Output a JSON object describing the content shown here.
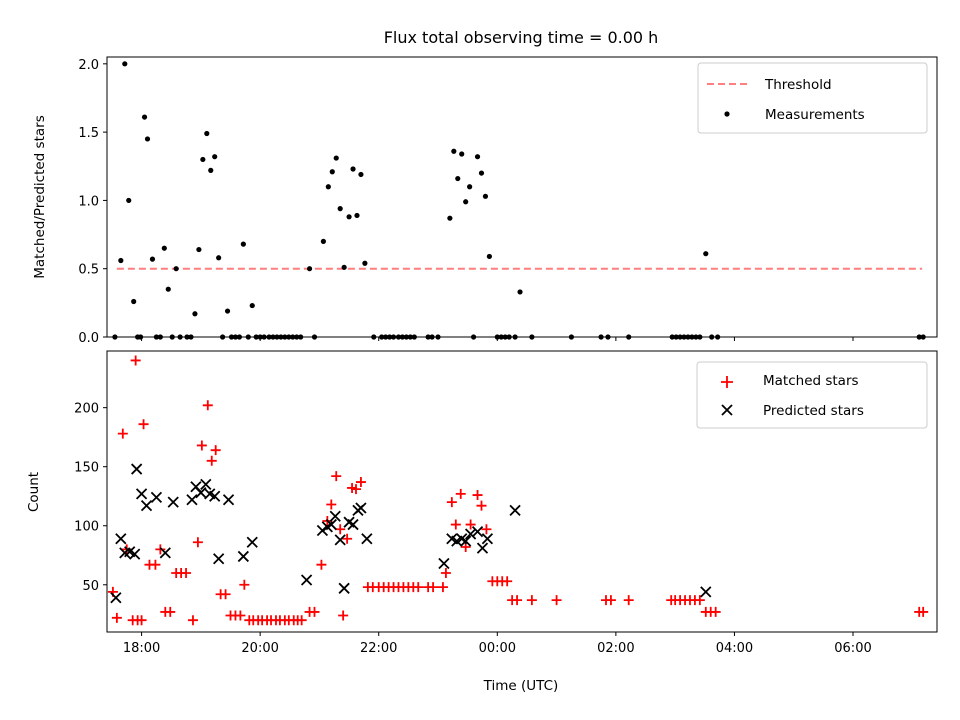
{
  "chart_data": [
    {
      "type": "scatter",
      "title": "Flux total observing time = 0.00 h",
      "xlabel": "",
      "ylabel": "Matched/Predicted stars",
      "xlim": [
        "17:25",
        "07:25"
      ],
      "ylim": [
        0,
        2.05
      ],
      "yticks": [
        "0.0",
        "0.5",
        "1.0",
        "1.5",
        "2.0"
      ],
      "legend_position": "top-right",
      "legend": [
        {
          "label": "Threshold",
          "marker": "dashed-line",
          "color": "#ff7f7f"
        },
        {
          "label": "Measurements",
          "marker": "dot",
          "color": "#000000"
        }
      ],
      "threshold": {
        "value": 0.5,
        "x_start": "17:35",
        "x_end": "07:10"
      },
      "series": [
        {
          "name": "Measurements",
          "color": "#000000",
          "points": [
            [
              "17:33",
              0
            ],
            [
              "17:39",
              0.56
            ],
            [
              "17:43",
              2.0
            ],
            [
              "17:47",
              1.0
            ],
            [
              "17:52",
              0.26
            ],
            [
              "17:56",
              0
            ],
            [
              "17:59",
              0
            ],
            [
              "18:03",
              1.61
            ],
            [
              "18:06",
              1.45
            ],
            [
              "18:11",
              0.57
            ],
            [
              "18:15",
              0
            ],
            [
              "18:19",
              0
            ],
            [
              "18:23",
              0.65
            ],
            [
              "18:27",
              0.35
            ],
            [
              "18:31",
              0
            ],
            [
              "18:35",
              0.5
            ],
            [
              "18:39",
              0
            ],
            [
              "18:46",
              0
            ],
            [
              "18:50",
              0
            ],
            [
              "18:54",
              0.17
            ],
            [
              "18:58",
              0.64
            ],
            [
              "19:02",
              1.3
            ],
            [
              "19:06",
              1.49
            ],
            [
              "19:10",
              1.22
            ],
            [
              "19:14",
              1.32
            ],
            [
              "19:18",
              0.58
            ],
            [
              "19:22",
              0
            ],
            [
              "19:27",
              0.19
            ],
            [
              "19:31",
              0
            ],
            [
              "19:35",
              0
            ],
            [
              "19:39",
              0
            ],
            [
              "19:43",
              0.68
            ],
            [
              "19:48",
              0
            ],
            [
              "19:52",
              0.23
            ],
            [
              "19:56",
              0
            ],
            [
              "20:00",
              0
            ],
            [
              "20:04",
              0
            ],
            [
              "20:09",
              0
            ],
            [
              "20:13",
              0
            ],
            [
              "20:17",
              0
            ],
            [
              "20:21",
              0
            ],
            [
              "20:25",
              0
            ],
            [
              "20:29",
              0
            ],
            [
              "20:33",
              0
            ],
            [
              "20:37",
              0
            ],
            [
              "20:41",
              0
            ],
            [
              "20:50",
              0.5
            ],
            [
              "20:55",
              0
            ],
            [
              "21:04",
              0.7
            ],
            [
              "21:09",
              1.1
            ],
            [
              "21:13",
              1.21
            ],
            [
              "21:17",
              1.31
            ],
            [
              "21:21",
              0.94
            ],
            [
              "21:25",
              0.51
            ],
            [
              "21:30",
              0.88
            ],
            [
              "21:34",
              1.23
            ],
            [
              "21:38",
              0.89
            ],
            [
              "21:42",
              1.19
            ],
            [
              "21:46",
              0.54
            ],
            [
              "21:55",
              0
            ],
            [
              "22:03",
              0
            ],
            [
              "22:07",
              0
            ],
            [
              "22:11",
              0
            ],
            [
              "22:15",
              0
            ],
            [
              "22:20",
              0
            ],
            [
              "22:24",
              0
            ],
            [
              "22:28",
              0
            ],
            [
              "22:32",
              0
            ],
            [
              "22:36",
              0
            ],
            [
              "22:50",
              0
            ],
            [
              "22:54",
              0
            ],
            [
              "23:00",
              0
            ],
            [
              "23:12",
              0.87
            ],
            [
              "23:16",
              1.36
            ],
            [
              "23:20",
              1.16
            ],
            [
              "23:24",
              1.34
            ],
            [
              "23:28",
              0.99
            ],
            [
              "23:32",
              1.1
            ],
            [
              "23:36",
              0
            ],
            [
              "23:40",
              1.32
            ],
            [
              "23:44",
              1.2
            ],
            [
              "23:48",
              1.03
            ],
            [
              "23:52",
              0.59
            ],
            [
              "24:00",
              0
            ],
            [
              "24:04",
              0
            ],
            [
              "24:08",
              0
            ],
            [
              "24:12",
              0
            ],
            [
              "24:18",
              0
            ],
            [
              "24:23",
              0.33
            ],
            [
              "24:35",
              0
            ],
            [
              "25:15",
              0
            ],
            [
              "25:45",
              0
            ],
            [
              "25:52",
              0
            ],
            [
              "26:13",
              0
            ],
            [
              "26:57",
              0
            ],
            [
              "27:01",
              0
            ],
            [
              "27:05",
              0
            ],
            [
              "27:09",
              0
            ],
            [
              "27:13",
              0
            ],
            [
              "27:17",
              0
            ],
            [
              "27:21",
              0
            ],
            [
              "27:25",
              0
            ],
            [
              "27:31",
              0.61
            ],
            [
              "27:37",
              0
            ],
            [
              "27:43",
              0
            ],
            [
              "31:07",
              0
            ],
            [
              "31:11",
              0
            ]
          ]
        }
      ]
    },
    {
      "type": "scatter",
      "title": "",
      "xlabel": "Time (UTC)",
      "ylabel": "Count",
      "xlim": [
        "17:25",
        "07:25"
      ],
      "ylim": [
        10,
        248
      ],
      "xticks": [
        "18:00",
        "20:00",
        "22:00",
        "00:00",
        "02:00",
        "04:00",
        "06:00"
      ],
      "yticks": [
        "50",
        "100",
        "150",
        "200"
      ],
      "legend_position": "top-right",
      "legend": [
        {
          "label": "Matched stars",
          "marker": "plus",
          "color": "#ff0000"
        },
        {
          "label": "Predicted stars",
          "marker": "x",
          "color": "#000000"
        }
      ],
      "series": [
        {
          "name": "Matched stars",
          "color": "#ff0000",
          "points": [
            [
              "17:31",
              44
            ],
            [
              "17:35",
              22
            ],
            [
              "17:41",
              178
            ],
            [
              "17:45",
              80
            ],
            [
              "17:51",
              20
            ],
            [
              "17:56",
              20
            ],
            [
              "18:00",
              20
            ],
            [
              "17:54",
              240
            ],
            [
              "18:02",
              186
            ],
            [
              "18:08",
              67
            ],
            [
              "18:14",
              67
            ],
            [
              "18:19",
              80
            ],
            [
              "18:24",
              27
            ],
            [
              "18:29",
              27
            ],
            [
              "18:35",
              60
            ],
            [
              "18:40",
              60
            ],
            [
              "18:45",
              60
            ],
            [
              "18:52",
              20
            ],
            [
              "18:57",
              86
            ],
            [
              "19:01",
              168
            ],
            [
              "19:07",
              202
            ],
            [
              "19:11",
              155
            ],
            [
              "19:15",
              164
            ],
            [
              "19:20",
              42
            ],
            [
              "19:25",
              42
            ],
            [
              "19:30",
              24
            ],
            [
              "19:35",
              24
            ],
            [
              "19:40",
              24
            ],
            [
              "19:44",
              50
            ],
            [
              "19:49",
              20
            ],
            [
              "19:53",
              20
            ],
            [
              "19:58",
              20
            ],
            [
              "20:02",
              20
            ],
            [
              "20:07",
              20
            ],
            [
              "20:11",
              20
            ],
            [
              "20:16",
              20
            ],
            [
              "20:20",
              20
            ],
            [
              "20:25",
              20
            ],
            [
              "20:29",
              20
            ],
            [
              "20:34",
              20
            ],
            [
              "20:38",
              20
            ],
            [
              "20:42",
              20
            ],
            [
              "20:50",
              27
            ],
            [
              "20:55",
              27
            ],
            [
              "21:02",
              67
            ],
            [
              "21:08",
              104
            ],
            [
              "21:12",
              118
            ],
            [
              "21:17",
              142
            ],
            [
              "21:21",
              97
            ],
            [
              "21:24",
              24
            ],
            [
              "21:28",
              89
            ],
            [
              "21:33",
              132
            ],
            [
              "21:37",
              131
            ],
            [
              "21:42",
              137
            ],
            [
              "21:49",
              48
            ],
            [
              "21:54",
              48
            ],
            [
              "22:00",
              48
            ],
            [
              "22:05",
              48
            ],
            [
              "22:10",
              48
            ],
            [
              "22:15",
              48
            ],
            [
              "22:20",
              48
            ],
            [
              "22:25",
              48
            ],
            [
              "22:30",
              48
            ],
            [
              "22:35",
              48
            ],
            [
              "22:40",
              48
            ],
            [
              "22:50",
              48
            ],
            [
              "22:55",
              48
            ],
            [
              "23:05",
              48
            ],
            [
              "23:08",
              60
            ],
            [
              "23:14",
              120
            ],
            [
              "23:18",
              101
            ],
            [
              "23:23",
              127
            ],
            [
              "23:28",
              82
            ],
            [
              "23:33",
              101
            ],
            [
              "23:40",
              126
            ],
            [
              "23:44",
              117
            ],
            [
              "23:49",
              97
            ],
            [
              "23:55",
              53
            ],
            [
              "24:00",
              53
            ],
            [
              "24:05",
              53
            ],
            [
              "24:10",
              53
            ],
            [
              "24:15",
              37
            ],
            [
              "24:20",
              37
            ],
            [
              "24:35",
              37
            ],
            [
              "25:00",
              37
            ],
            [
              "25:50",
              37
            ],
            [
              "25:55",
              37
            ],
            [
              "26:13",
              37
            ],
            [
              "26:56",
              37
            ],
            [
              "27:00",
              37
            ],
            [
              "27:05",
              37
            ],
            [
              "27:10",
              37
            ],
            [
              "27:15",
              37
            ],
            [
              "27:20",
              37
            ],
            [
              "27:25",
              37
            ],
            [
              "27:31",
              27
            ],
            [
              "27:36",
              27
            ],
            [
              "27:41",
              27
            ],
            [
              "31:07",
              27
            ],
            [
              "31:11",
              27
            ]
          ]
        },
        {
          "name": "Predicted stars",
          "color": "#000000",
          "points": [
            [
              "17:34",
              39
            ],
            [
              "17:39",
              89
            ],
            [
              "17:43",
              77
            ],
            [
              "17:48",
              78
            ],
            [
              "17:53",
              76
            ],
            [
              "17:55",
              148
            ],
            [
              "18:00",
              127
            ],
            [
              "18:05",
              117
            ],
            [
              "18:15",
              124
            ],
            [
              "18:24",
              77
            ],
            [
              "18:32",
              120
            ],
            [
              "18:51",
              122
            ],
            [
              "18:55",
              133
            ],
            [
              "19:00",
              128
            ],
            [
              "19:05",
              135
            ],
            [
              "19:09",
              127
            ],
            [
              "19:14",
              125
            ],
            [
              "19:18",
              72
            ],
            [
              "19:28",
              122
            ],
            [
              "19:43",
              74
            ],
            [
              "19:52",
              86
            ],
            [
              "20:47",
              54
            ],
            [
              "21:03",
              96
            ],
            [
              "21:08",
              99
            ],
            [
              "21:12",
              101
            ],
            [
              "21:16",
              108
            ],
            [
              "21:21",
              88
            ],
            [
              "21:25",
              47
            ],
            [
              "21:30",
              103
            ],
            [
              "21:34",
              101
            ],
            [
              "21:39",
              113
            ],
            [
              "21:42",
              115
            ],
            [
              "21:48",
              89
            ],
            [
              "23:06",
              68
            ],
            [
              "23:14",
              89
            ],
            [
              "23:19",
              87
            ],
            [
              "23:24",
              89
            ],
            [
              "23:28",
              87
            ],
            [
              "23:33",
              93
            ],
            [
              "23:40",
              95
            ],
            [
              "23:45",
              81
            ],
            [
              "23:50",
              89
            ],
            [
              "24:18",
              113
            ],
            [
              "27:31",
              44
            ]
          ]
        }
      ]
    }
  ]
}
